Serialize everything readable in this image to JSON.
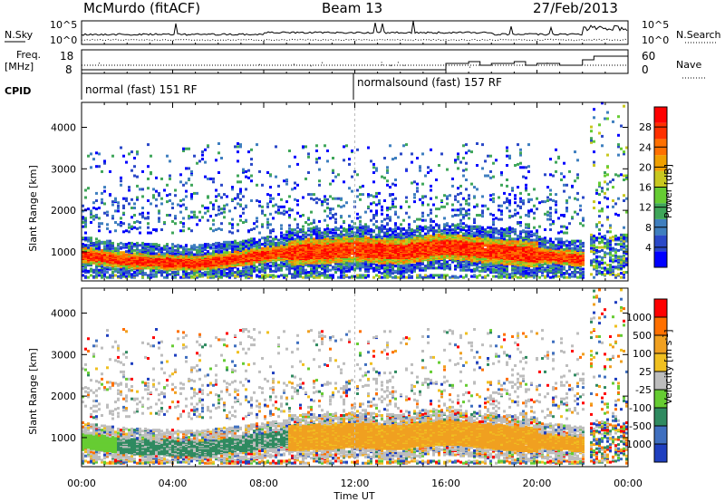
{
  "header": {
    "station": "McMurdo (fitACF)",
    "beam": "Beam 13",
    "date": "27/Feb/2013"
  },
  "noise_panel": {
    "left_label": "N.Sky",
    "right_label": "N.Search",
    "left_ticks": [
      "10^5",
      "10^0"
    ],
    "right_ticks": [
      "10^5",
      "10^0"
    ]
  },
  "freq_panel": {
    "left_label_line1": "Freq.",
    "left_label_line2": "[MHz]",
    "left_ticks": [
      "18",
      "8"
    ],
    "right_ticks": [
      "60",
      "0"
    ],
    "right_label": "Nave"
  },
  "cpid_panel": {
    "label": "CPID",
    "programs": [
      {
        "text": "normal (fast) 151 RF",
        "start_hour": 0
      },
      {
        "text": "normalsound (fast) 157 RF",
        "start_hour": 12
      }
    ]
  },
  "chart_data": [
    {
      "type": "heatmap",
      "name": "power",
      "xlabel": "",
      "ylabel": "Slant Range [km]",
      "ylim": [
        300,
        4600
      ],
      "yticks": [
        "1000",
        "2000",
        "3000",
        "4000"
      ],
      "ytick_values": [
        1000,
        2000,
        3000,
        4000
      ],
      "xlim_hours": [
        0,
        24
      ],
      "colorbar": {
        "label": "Power [dB]",
        "ticks": [
          "4",
          "8",
          "12",
          "16",
          "20",
          "24",
          "28"
        ],
        "colors": [
          "#0000ff",
          "#2a48c8",
          "#3f7fbf",
          "#3fa65a",
          "#66cc33",
          "#c8c820",
          "#f0a000",
          "#ff7000",
          "#ff3000",
          "#ff0000"
        ]
      },
      "echo_band_center_km": [
        [
          0,
          900
        ],
        [
          1,
          820
        ],
        [
          2,
          760
        ],
        [
          3,
          740
        ],
        [
          4,
          720
        ],
        [
          5,
          700
        ],
        [
          6,
          760
        ],
        [
          7,
          820
        ],
        [
          8,
          900
        ],
        [
          9,
          960
        ],
        [
          10,
          980
        ],
        [
          11,
          1000
        ],
        [
          12,
          1050
        ],
        [
          13,
          1000
        ],
        [
          14,
          980
        ],
        [
          15,
          1050
        ],
        [
          16,
          1100
        ],
        [
          17,
          1050
        ],
        [
          18,
          1000
        ],
        [
          19,
          950
        ],
        [
          20,
          900
        ],
        [
          21,
          850
        ],
        [
          22,
          800
        ]
      ]
    },
    {
      "type": "heatmap",
      "name": "velocity",
      "xlabel": "Time UT",
      "ylabel": "Slant Range [km]",
      "ylim": [
        300,
        4600
      ],
      "yticks": [
        "1000",
        "2000",
        "3000",
        "4000"
      ],
      "ytick_values": [
        1000,
        2000,
        3000,
        4000
      ],
      "xlim_hours": [
        0,
        24
      ],
      "xticks": [
        "00:00",
        "04:00",
        "08:00",
        "12:00",
        "16:00",
        "20:00",
        "00:00"
      ],
      "colorbar": {
        "label": "Velocity [m s",
        "label_exponent": "-1",
        "ticks": [
          "1000",
          "500",
          "100",
          "25",
          "-25",
          "-100",
          "-500",
          "-1000"
        ],
        "colors": [
          "#1f3fbf",
          "#3f6fbf",
          "#2f8a60",
          "#66cc33",
          "#bdbdbd",
          "#f0c020",
          "#f0a020",
          "#ff7000",
          "#ff0000"
        ]
      }
    }
  ]
}
